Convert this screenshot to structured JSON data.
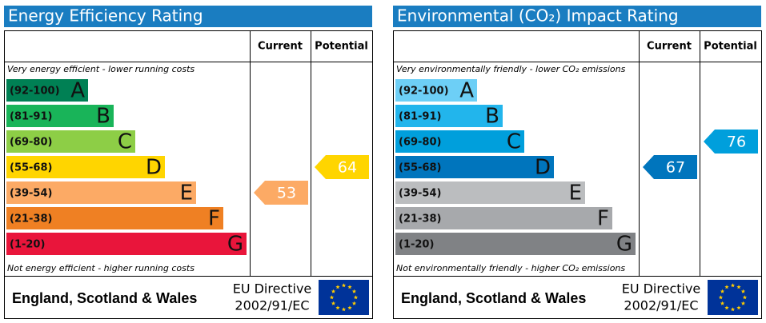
{
  "panels": [
    {
      "title": "Energy Efficiency Rating",
      "header": {
        "current": "Current",
        "potential": "Potential"
      },
      "top_note": "Very energy efficient - lower running costs",
      "bottom_note": "Not energy efficient - higher running costs",
      "bands": [
        {
          "range": "(92-100)",
          "letter": "A",
          "color": "#008054"
        },
        {
          "range": "(81-91)",
          "letter": "B",
          "color": "#19b459"
        },
        {
          "range": "(69-80)",
          "letter": "C",
          "color": "#8dce46"
        },
        {
          "range": "(55-68)",
          "letter": "D",
          "color": "#ffd500"
        },
        {
          "range": "(39-54)",
          "letter": "E",
          "color": "#fcaa65"
        },
        {
          "range": "(21-38)",
          "letter": "F",
          "color": "#ef8023"
        },
        {
          "range": "(1-20)",
          "letter": "G",
          "color": "#e9153b"
        }
      ],
      "current": 53,
      "potential": 64,
      "footer": {
        "region": "England, Scotland & Wales",
        "directive": "EU Directive",
        "code": "2002/91/EC"
      }
    },
    {
      "title": "Environmental (CO₂) Impact Rating",
      "header": {
        "current": "Current",
        "potential": "Potential"
      },
      "top_note": "Very environmentally friendly - lower CO₂ emissions",
      "bottom_note": "Not environmentally friendly - higher CO₂ emissions",
      "bands": [
        {
          "range": "(92-100)",
          "letter": "A",
          "color": "#6dcff6"
        },
        {
          "range": "(81-91)",
          "letter": "B",
          "color": "#22b5ec"
        },
        {
          "range": "(69-80)",
          "letter": "C",
          "color": "#009fdc"
        },
        {
          "range": "(55-68)",
          "letter": "D",
          "color": "#0075bd"
        },
        {
          "range": "(39-54)",
          "letter": "E",
          "color": "#bbbdbf"
        },
        {
          "range": "(21-38)",
          "letter": "F",
          "color": "#a7a9ac"
        },
        {
          "range": "(1-20)",
          "letter": "G",
          "color": "#808285"
        }
      ],
      "current": 67,
      "potential": 76,
      "footer": {
        "region": "England, Scotland & Wales",
        "directive": "EU Directive",
        "code": "2002/91/EC"
      }
    }
  ]
}
